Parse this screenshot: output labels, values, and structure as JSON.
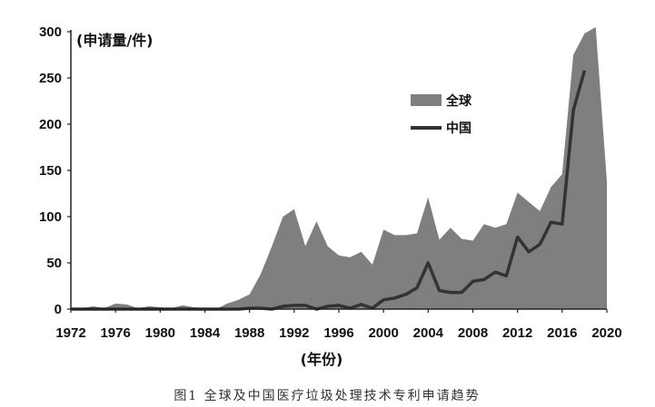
{
  "chart_data": {
    "type": "area",
    "y_unit_label": "(申请量/件)",
    "xlabel": "(年份)",
    "caption": "图1   全球及中国医疗垃圾处理技术专利申请趋势",
    "xlim": [
      1972,
      2020
    ],
    "ylim": [
      0,
      300
    ],
    "x_ticks": [
      "1972",
      "1976",
      "1980",
      "1984",
      "1988",
      "1992",
      "1996",
      "2000",
      "2004",
      "2008",
      "2012",
      "2016",
      "2020"
    ],
    "y_ticks": [
      "0",
      "50",
      "100",
      "150",
      "200",
      "250",
      "300"
    ],
    "legend_position": "upper-middle-right",
    "grid": false,
    "series": [
      {
        "name": "全球",
        "kind": "area",
        "color": "#7f7f7f",
        "x": [
          1972,
          1973,
          1974,
          1975,
          1976,
          1977,
          1978,
          1979,
          1980,
          1981,
          1982,
          1983,
          1984,
          1985,
          1986,
          1987,
          1988,
          1989,
          1990,
          1991,
          1992,
          1993,
          1994,
          1995,
          1996,
          1997,
          1998,
          1999,
          2000,
          2001,
          2002,
          2003,
          2004,
          2005,
          2006,
          2007,
          2008,
          2009,
          2010,
          2011,
          2012,
          2013,
          2014,
          2015,
          2016,
          2017,
          2018,
          2019,
          2020
        ],
        "values": [
          0,
          1,
          3,
          1,
          6,
          5,
          1,
          3,
          2,
          1,
          4,
          2,
          1,
          0,
          6,
          10,
          16,
          38,
          68,
          100,
          108,
          68,
          95,
          68,
          58,
          56,
          62,
          48,
          86,
          80,
          80,
          82,
          121,
          75,
          88,
          76,
          74,
          92,
          88,
          92,
          126,
          116,
          106,
          132,
          146,
          275,
          298,
          305,
          138
        ]
      },
      {
        "name": "中国",
        "kind": "line",
        "color": "#333333",
        "x": [
          1972,
          1973,
          1974,
          1975,
          1976,
          1977,
          1978,
          1979,
          1980,
          1981,
          1982,
          1983,
          1984,
          1985,
          1986,
          1987,
          1988,
          1989,
          1990,
          1991,
          1992,
          1993,
          1994,
          1995,
          1996,
          1997,
          1998,
          1999,
          2000,
          2001,
          2002,
          2003,
          2004,
          2005,
          2006,
          2007,
          2008,
          2009,
          2010,
          2011,
          2012,
          2013,
          2014,
          2015,
          2016,
          2017,
          2018
        ],
        "values": [
          0,
          0,
          0,
          0,
          0,
          0,
          0,
          0,
          0,
          0,
          0,
          0,
          0,
          0,
          0,
          0,
          1,
          1,
          0,
          3,
          4,
          4,
          0,
          3,
          4,
          1,
          5,
          1,
          10,
          12,
          16,
          23,
          50,
          20,
          18,
          18,
          30,
          32,
          40,
          36,
          78,
          62,
          70,
          94,
          92,
          215,
          258
        ]
      }
    ]
  }
}
